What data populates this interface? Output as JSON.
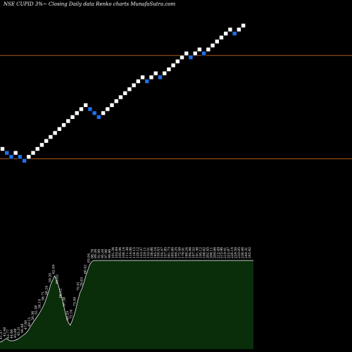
{
  "chart_data": {
    "type": "renko",
    "title": "NSE CUPID 3%~  Closing Daily data  Renko  charts MunafaSutra.com",
    "colors": {
      "background": "#000000",
      "up_brick": "#ffffff",
      "down_brick": "#1e6fe8",
      "level_line": "#b05a16",
      "area_fill": "#0a2e0a",
      "area_edge": "#ffffff",
      "label": "#ffffff"
    },
    "bricks": [
      {
        "dir": "up"
      },
      {
        "dir": "down"
      },
      {
        "dir": "down"
      },
      {
        "dir": "up"
      },
      {
        "dir": "down"
      },
      {
        "dir": "down"
      },
      {
        "dir": "up"
      },
      {
        "dir": "up"
      },
      {
        "dir": "up"
      },
      {
        "dir": "up"
      },
      {
        "dir": "up"
      },
      {
        "dir": "up"
      },
      {
        "dir": "up"
      },
      {
        "dir": "up"
      },
      {
        "dir": "up"
      },
      {
        "dir": "up"
      },
      {
        "dir": "up"
      },
      {
        "dir": "up"
      },
      {
        "dir": "up"
      },
      {
        "dir": "up"
      },
      {
        "dir": "down"
      },
      {
        "dir": "down"
      },
      {
        "dir": "down"
      },
      {
        "dir": "up"
      },
      {
        "dir": "up"
      },
      {
        "dir": "up"
      },
      {
        "dir": "up"
      },
      {
        "dir": "up"
      },
      {
        "dir": "up"
      },
      {
        "dir": "up"
      },
      {
        "dir": "up"
      },
      {
        "dir": "up"
      },
      {
        "dir": "up"
      },
      {
        "dir": "down"
      },
      {
        "dir": "up"
      },
      {
        "dir": "up"
      },
      {
        "dir": "down"
      },
      {
        "dir": "up"
      },
      {
        "dir": "up"
      },
      {
        "dir": "up"
      },
      {
        "dir": "up"
      },
      {
        "dir": "up"
      },
      {
        "dir": "up"
      },
      {
        "dir": "down"
      },
      {
        "dir": "up"
      },
      {
        "dir": "up"
      },
      {
        "dir": "down"
      },
      {
        "dir": "up"
      },
      {
        "dir": "up"
      },
      {
        "dir": "up"
      },
      {
        "dir": "up"
      },
      {
        "dir": "up"
      },
      {
        "dir": "up"
      },
      {
        "dir": "down"
      },
      {
        "dir": "up"
      },
      {
        "dir": "up"
      }
    ],
    "brick_levels": [
      0,
      -1,
      -2,
      -1,
      -2,
      -3,
      -2,
      -1,
      0,
      1,
      2,
      3,
      4,
      5,
      6,
      7,
      8,
      9,
      10,
      11,
      10,
      9,
      8,
      9,
      10,
      11,
      12,
      13,
      14,
      15,
      16,
      17,
      18,
      17,
      18,
      19,
      18,
      19,
      20,
      21,
      22,
      23,
      24,
      23,
      24,
      25,
      24,
      25,
      26,
      27,
      28,
      29,
      30,
      29,
      30,
      31
    ],
    "level_lines": {
      "upper_level": 23.5,
      "lower_level": -2.5
    },
    "price_labels": [
      "41.37",
      "42.48",
      "43.77",
      "44.66",
      "45.08",
      "45.31",
      "46.48",
      "47.60",
      "49.15",
      "50.36",
      "52.38",
      "54.14",
      "56.71",
      "58.24",
      "59.20",
      "62.09",
      "65.02",
      "66.12",
      "67.38",
      "69.29",
      "72.16",
      "73.50",
      "75.91",
      "78.63",
      "80.42",
      "83.04",
      "86.78",
      "89.38",
      "91.99",
      "95.28",
      "97.96",
      "99.86",
      "101.34",
      "103.49",
      "105.94",
      "108.14",
      "111.38",
      "114.06",
      "116.15",
      "120.12",
      "123.37",
      "129.11",
      "133.51",
      "138.86",
      "145.16",
      "150.43",
      "154.47",
      "157.85",
      "161.73",
      "165.60",
      "169.25",
      "172.48",
      "176.91",
      "180.24",
      "184.06",
      "187.52",
      "191.36",
      "195.12",
      "198.82",
      "202.45",
      "206.11",
      "209.66",
      "212.49",
      "215.96",
      "219.41",
      "222.87",
      "226.14",
      "229.50",
      "233.05",
      "236.46",
      "240.31",
      "245.62"
    ],
    "volume_area": [
      10,
      11,
      13,
      15,
      14,
      12,
      12,
      12,
      13,
      14,
      16,
      18,
      20,
      22,
      25,
      29,
      34,
      38,
      42,
      46,
      50,
      55,
      60,
      66,
      74,
      82,
      92,
      98,
      104,
      98,
      90,
      80,
      70,
      58,
      46,
      38,
      34,
      40,
      48,
      58,
      70,
      80,
      86,
      94,
      104,
      112,
      120,
      124,
      126,
      126,
      126,
      126,
      126,
      126,
      126,
      126,
      126,
      126,
      126,
      126,
      126,
      126,
      126,
      126,
      126,
      126,
      126,
      126,
      126,
      126,
      126,
      126,
      126,
      126,
      126,
      126,
      126,
      126,
      126,
      126,
      126,
      126,
      126,
      126,
      126,
      126,
      126,
      126,
      126,
      126,
      126,
      126,
      126,
      126,
      126,
      126,
      126,
      126,
      126,
      126,
      126,
      126,
      126,
      126,
      126,
      126,
      126,
      126,
      126,
      126,
      126,
      126,
      126,
      126,
      126,
      126,
      126,
      126,
      126,
      126,
      126,
      126,
      126,
      126,
      126,
      126,
      126,
      126,
      126,
      126,
      126
    ]
  }
}
